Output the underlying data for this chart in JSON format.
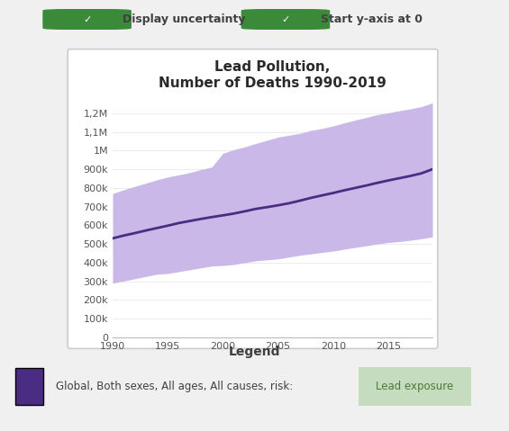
{
  "title": "Lead Pollution,\nNumber of Deaths 1990-2019",
  "title_fontsize": 11,
  "line_color": "#4a2d82",
  "band_color": "#c9b8e8",
  "background_color": "#ffffff",
  "outer_background": "#f0f0f0",
  "years": [
    1990,
    1991,
    1992,
    1993,
    1994,
    1995,
    1996,
    1997,
    1998,
    1999,
    2000,
    2001,
    2002,
    2003,
    2004,
    2005,
    2006,
    2007,
    2008,
    2009,
    2010,
    2011,
    2012,
    2013,
    2014,
    2015,
    2016,
    2017,
    2018,
    2019
  ],
  "central": [
    530000,
    545000,
    558000,
    572000,
    585000,
    598000,
    612000,
    623000,
    634000,
    644000,
    653000,
    663000,
    675000,
    688000,
    697000,
    707000,
    718000,
    732000,
    747000,
    760000,
    773000,
    787000,
    800000,
    813000,
    827000,
    840000,
    852000,
    864000,
    878000,
    900000
  ],
  "upper": [
    770000,
    790000,
    808000,
    825000,
    843000,
    858000,
    870000,
    882000,
    898000,
    912000,
    985000,
    1005000,
    1020000,
    1038000,
    1055000,
    1072000,
    1082000,
    1092000,
    1108000,
    1118000,
    1132000,
    1148000,
    1163000,
    1177000,
    1192000,
    1202000,
    1213000,
    1223000,
    1235000,
    1255000
  ],
  "lower": [
    290000,
    302000,
    314000,
    326000,
    338000,
    342000,
    352000,
    362000,
    372000,
    382000,
    385000,
    390000,
    400000,
    410000,
    415000,
    420000,
    430000,
    440000,
    447000,
    455000,
    462000,
    472000,
    482000,
    490000,
    500000,
    508000,
    513000,
    520000,
    528000,
    538000
  ],
  "yticks": [
    0,
    100000,
    200000,
    300000,
    400000,
    500000,
    600000,
    700000,
    800000,
    900000,
    1000000,
    1100000,
    1200000
  ],
  "ytick_labels": [
    "0",
    "100k",
    "200k",
    "300k",
    "400k",
    "500k",
    "600k",
    "700k",
    "800k",
    "900k",
    "1M",
    "1,1M",
    "1,2M"
  ],
  "xticks": [
    1990,
    1995,
    2000,
    2005,
    2010,
    2015
  ],
  "xlim": [
    1990,
    2019
  ],
  "ylim": [
    0,
    1300000
  ],
  "legend_title": "Legend",
  "legend_text": "Global, Both sexes, All ages, All causes, risk: ",
  "legend_highlight": "Lead exposure",
  "legend_highlight_bg": "#c5dcbf",
  "legend_highlight_color": "#4a7a3a",
  "checkbox_color": "#3a8a3a",
  "label1": "Display uncertainty",
  "label2": "Start y-axis at 0",
  "text_color": "#404040"
}
